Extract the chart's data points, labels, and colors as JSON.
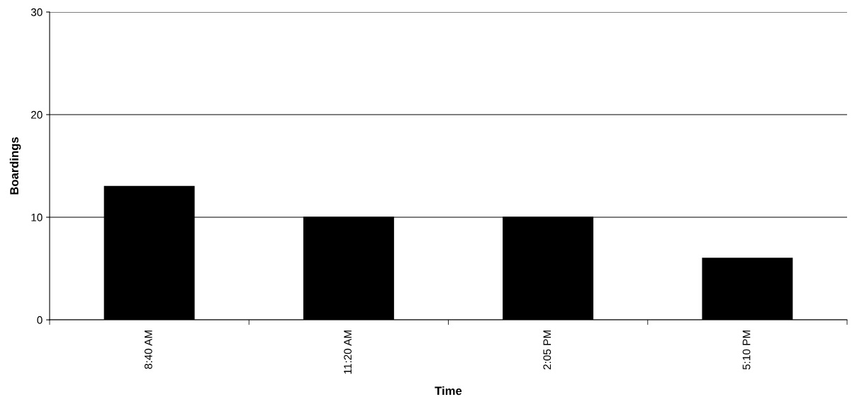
{
  "chart_data": {
    "type": "bar",
    "xlabel": "Time",
    "ylabel": "Boardings",
    "categories": [
      "8:40 AM",
      "11:20 AM",
      "2:05 PM",
      "5:10 PM"
    ],
    "values": [
      13,
      10,
      10,
      6
    ],
    "color": "#000000",
    "ylim": [
      0,
      30
    ],
    "yticks": [
      0,
      10,
      20,
      30
    ],
    "grid": "y",
    "legend": false
  }
}
